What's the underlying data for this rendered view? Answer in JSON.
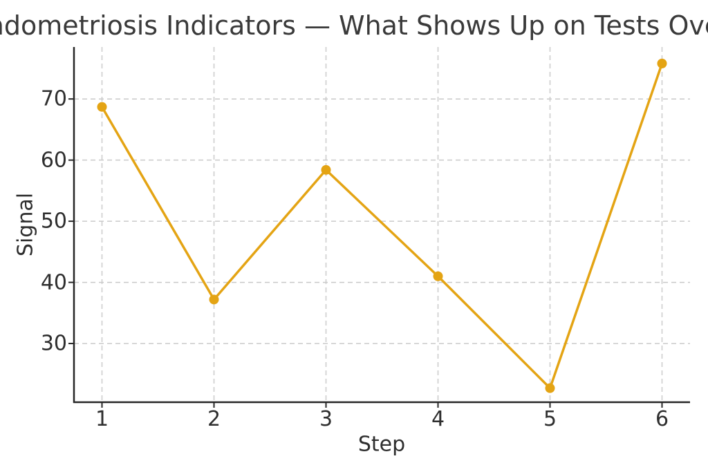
{
  "chart_data": {
    "type": "line",
    "title": "ndometriosis Indicators — What Shows Up on Tests Ove",
    "xlabel": "Step",
    "ylabel": "Signal",
    "x": [
      1,
      2,
      3,
      4,
      5,
      6
    ],
    "series": [
      {
        "name": "Signal",
        "values": [
          68.7,
          37.2,
          58.4,
          41.0,
          22.7,
          75.8
        ]
      }
    ],
    "xticks": [
      1,
      2,
      3,
      4,
      5,
      6
    ],
    "yticks": [
      30,
      40,
      50,
      60,
      70
    ],
    "xlim": [
      0.75,
      6.25
    ],
    "ylim": [
      20.4,
      78.5
    ],
    "grid": true,
    "grid_style": "dashed",
    "legend": "none",
    "line_color": "#E4A414",
    "marker": "circle",
    "marker_color": "#E4A414"
  },
  "colors": {
    "background": "#ffffff",
    "accent_line": "#E4A414",
    "grid": "#c9c9c9",
    "spine": "#262626",
    "text": "#2e2e2e",
    "title_text": "#3a3a3a"
  }
}
